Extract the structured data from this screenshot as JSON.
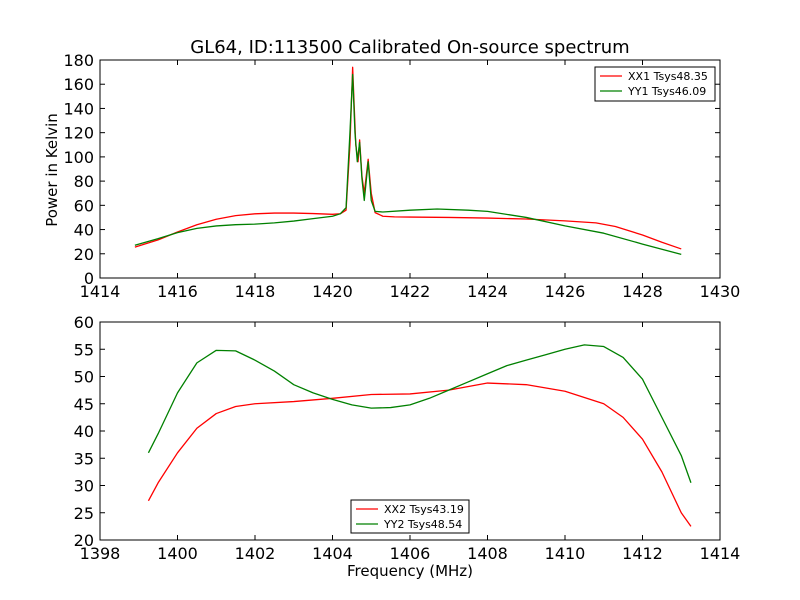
{
  "chart_data": [
    {
      "type": "line",
      "title": "GL64, ID:113500 Calibrated On-source spectrum",
      "xlabel": "",
      "ylabel": "Power in Kelvin",
      "xlim": [
        1414,
        1430
      ],
      "ylim": [
        0,
        180
      ],
      "x_ticks": [
        "1414",
        "1416",
        "1418",
        "1420",
        "1422",
        "1424",
        "1426",
        "1428",
        "1430"
      ],
      "y_ticks": [
        "0",
        "20",
        "40",
        "60",
        "80",
        "100",
        "120",
        "140",
        "160",
        "180"
      ],
      "grid": false,
      "legend_position": "top-right",
      "series": [
        {
          "name": "XX1 Tsys48.35",
          "color": "#ff0000",
          "points": [
            [
              1414.9,
              25.5
            ],
            [
              1415.5,
              31.5
            ],
            [
              1416,
              38
            ],
            [
              1416.5,
              44
            ],
            [
              1417,
              48.5
            ],
            [
              1417.5,
              51.5
            ],
            [
              1418,
              53
            ],
            [
              1418.5,
              53.6
            ],
            [
              1419,
              53.6
            ],
            [
              1419.5,
              53.2
            ],
            [
              1420,
              52.6
            ],
            [
              1420.2,
              53
            ],
            [
              1420.35,
              56
            ],
            [
              1420.45,
              110
            ],
            [
              1420.52,
              174
            ],
            [
              1420.6,
              110
            ],
            [
              1420.66,
              96
            ],
            [
              1420.7,
              114
            ],
            [
              1420.76,
              84
            ],
            [
              1420.82,
              70
            ],
            [
              1420.92,
              98
            ],
            [
              1421.0,
              70
            ],
            [
              1421.1,
              54
            ],
            [
              1421.3,
              51
            ],
            [
              1421.6,
              50.5
            ],
            [
              1422,
              50.3
            ],
            [
              1423,
              50
            ],
            [
              1424,
              49.5
            ],
            [
              1425,
              48.7
            ],
            [
              1426,
              47.2
            ],
            [
              1426.8,
              45.5
            ],
            [
              1427.3,
              42.5
            ],
            [
              1428,
              35.5
            ],
            [
              1428.5,
              29.5
            ],
            [
              1429,
              24
            ]
          ]
        },
        {
          "name": "YY1 Tsys46.09",
          "color": "#008000",
          "points": [
            [
              1414.9,
              27
            ],
            [
              1415.5,
              32.5
            ],
            [
              1416,
              37.5
            ],
            [
              1416.5,
              41
            ],
            [
              1417,
              43
            ],
            [
              1417.5,
              44
            ],
            [
              1418,
              44.5
            ],
            [
              1418.5,
              45.5
            ],
            [
              1419,
              47
            ],
            [
              1419.5,
              49
            ],
            [
              1420,
              51
            ],
            [
              1420.2,
              53
            ],
            [
              1420.35,
              58
            ],
            [
              1420.45,
              120
            ],
            [
              1420.52,
              168
            ],
            [
              1420.58,
              120
            ],
            [
              1420.64,
              96
            ],
            [
              1420.7,
              112
            ],
            [
              1420.76,
              82
            ],
            [
              1420.82,
              64
            ],
            [
              1420.92,
              96
            ],
            [
              1421.0,
              64
            ],
            [
              1421.1,
              55
            ],
            [
              1421.3,
              54.5
            ],
            [
              1422,
              56
            ],
            [
              1422.7,
              57
            ],
            [
              1423.5,
              56
            ],
            [
              1424,
              55
            ],
            [
              1425,
              50
            ],
            [
              1426,
              43
            ],
            [
              1427,
              37
            ],
            [
              1428,
              28
            ],
            [
              1429,
              19.5
            ]
          ]
        }
      ]
    },
    {
      "type": "line",
      "title": "",
      "xlabel": "Frequency (MHz)",
      "ylabel": "",
      "xlim": [
        1398,
        1414
      ],
      "ylim": [
        20,
        60
      ],
      "x_ticks": [
        "1398",
        "1400",
        "1402",
        "1404",
        "1406",
        "1408",
        "1410",
        "1412",
        "1414"
      ],
      "y_ticks": [
        "20",
        "25",
        "30",
        "35",
        "40",
        "45",
        "50",
        "55",
        "60"
      ],
      "grid": false,
      "legend_position": "bottom-center",
      "series": [
        {
          "name": "XX2 Tsys43.19",
          "color": "#ff0000",
          "points": [
            [
              1399.25,
              27.2
            ],
            [
              1399.5,
              30.5
            ],
            [
              1400,
              36
            ],
            [
              1400.5,
              40.5
            ],
            [
              1401,
              43.2
            ],
            [
              1401.5,
              44.5
            ],
            [
              1402,
              45
            ],
            [
              1403,
              45.4
            ],
            [
              1404,
              46
            ],
            [
              1405,
              46.7
            ],
            [
              1406,
              46.8
            ],
            [
              1407,
              47.5
            ],
            [
              1408,
              48.8
            ],
            [
              1409,
              48.5
            ],
            [
              1410,
              47.3
            ],
            [
              1411,
              45
            ],
            [
              1411.5,
              42.5
            ],
            [
              1412,
              38.5
            ],
            [
              1412.5,
              32.5
            ],
            [
              1413,
              25
            ],
            [
              1413.25,
              22.5
            ]
          ]
        },
        {
          "name": "YY2 Tsys48.54",
          "color": "#008000",
          "points": [
            [
              1399.25,
              36
            ],
            [
              1399.5,
              39.5
            ],
            [
              1400,
              47
            ],
            [
              1400.5,
              52.5
            ],
            [
              1401,
              54.8
            ],
            [
              1401.5,
              54.7
            ],
            [
              1402,
              53
            ],
            [
              1402.5,
              51
            ],
            [
              1403,
              48.5
            ],
            [
              1403.5,
              47
            ],
            [
              1404,
              45.8
            ],
            [
              1404.5,
              44.8
            ],
            [
              1405,
              44.2
            ],
            [
              1405.5,
              44.3
            ],
            [
              1406,
              44.8
            ],
            [
              1406.5,
              46
            ],
            [
              1407,
              47.5
            ],
            [
              1407.5,
              49
            ],
            [
              1408,
              50.5
            ],
            [
              1408.5,
              52
            ],
            [
              1409,
              53
            ],
            [
              1409.5,
              54
            ],
            [
              1410,
              55
            ],
            [
              1410.5,
              55.8
            ],
            [
              1411,
              55.5
            ],
            [
              1411.5,
              53.5
            ],
            [
              1412,
              49.5
            ],
            [
              1412.5,
              42.5
            ],
            [
              1413,
              35.5
            ],
            [
              1413.25,
              30.5
            ]
          ]
        }
      ]
    }
  ]
}
